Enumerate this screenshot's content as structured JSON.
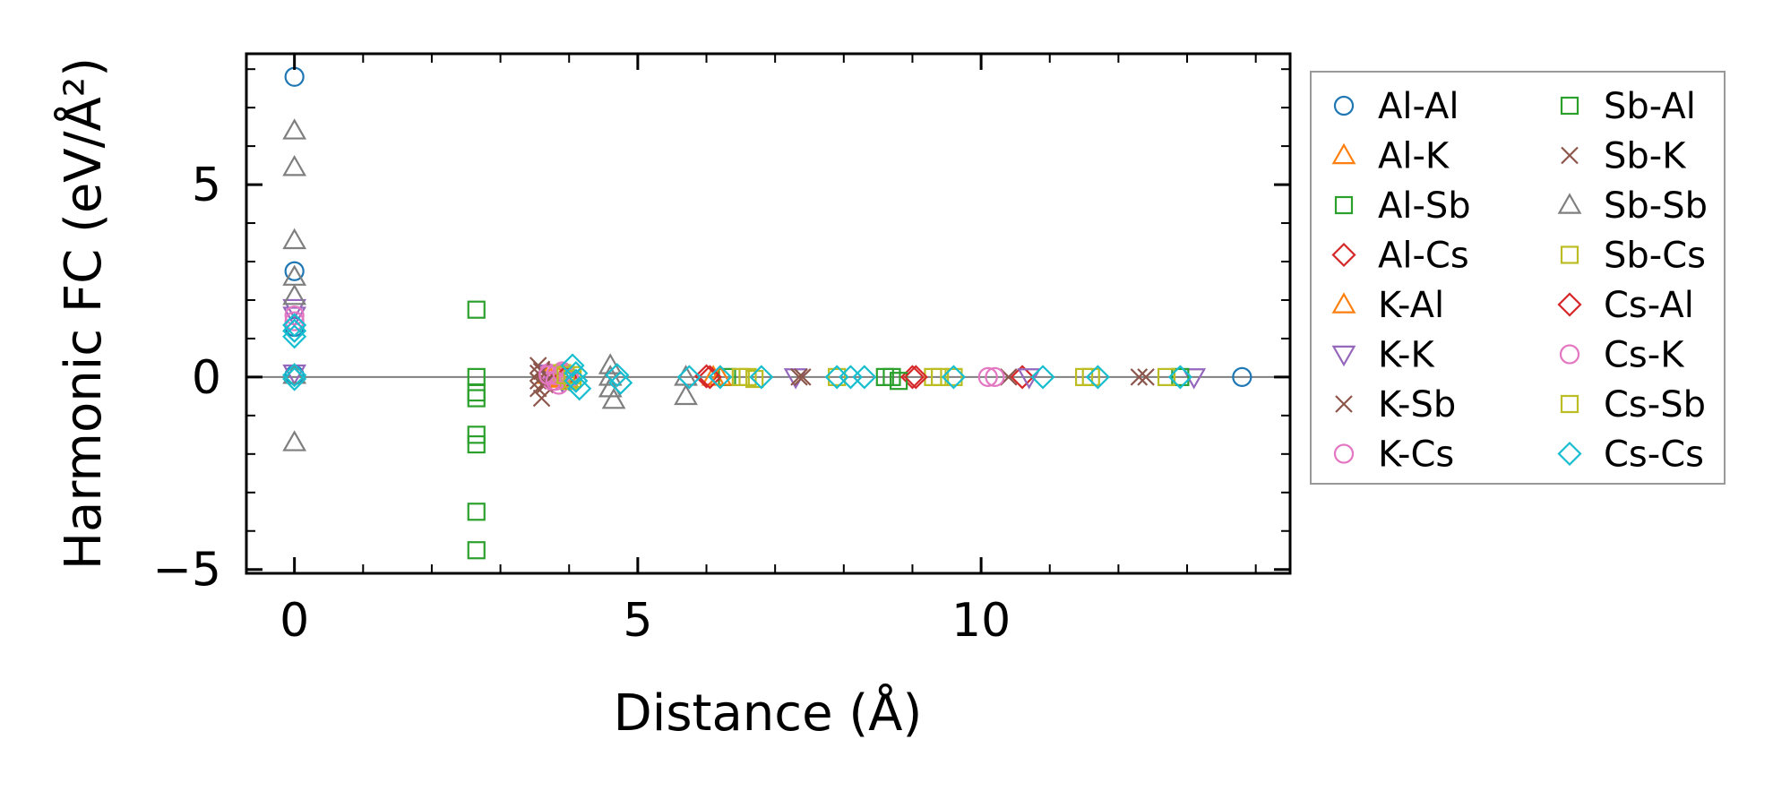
{
  "chart_data": {
    "type": "scatter",
    "xlabel": "Distance (Å)",
    "ylabel": "Harmonic FC (eV/Å²)",
    "xlim": [
      -0.7,
      14.5
    ],
    "ylim": [
      -5.1,
      8.4
    ],
    "xticks": [
      0,
      5,
      10
    ],
    "yticks": [
      -5,
      0,
      5
    ],
    "x_tick_labels": [
      "0",
      "5",
      "10"
    ],
    "y_tick_labels": [
      "−5",
      "0",
      "5"
    ],
    "grid": false,
    "zero_line": true,
    "legend": {
      "placement": "outside-right",
      "columns": 2
    },
    "series": [
      {
        "name": "Al-Al",
        "marker": "circle",
        "color": "#1f77b4",
        "x": [
          0,
          0,
          0,
          0,
          13.8
        ],
        "y": [
          7.8,
          2.75,
          1.3,
          0.05,
          0.0
        ]
      },
      {
        "name": "Al-K",
        "marker": "triangle-up",
        "color": "#ff7f0e",
        "x": [
          3.7,
          3.8,
          6.1
        ],
        "y": [
          0.05,
          -0.05,
          0.0
        ]
      },
      {
        "name": "Al-Sb",
        "marker": "square",
        "color": "#2ca02c",
        "x": [
          2.65,
          2.65,
          2.65,
          2.65,
          2.65,
          2.65,
          2.65,
          2.65,
          6.3,
          8.7
        ],
        "y": [
          1.75,
          -0.4,
          -0.55,
          -1.5,
          -1.75,
          -3.5,
          -4.5,
          0.0,
          0.0,
          0.0
        ]
      },
      {
        "name": "Al-Cs",
        "marker": "diamond",
        "color": "#d62728",
        "x": [
          3.9,
          4.0,
          6.0,
          9.0,
          10.6
        ],
        "y": [
          0.05,
          -0.05,
          0.02,
          0.0,
          0.0
        ]
      },
      {
        "name": "K-Al",
        "marker": "triangle-up",
        "color": "#ff7f0e",
        "x": [
          3.75,
          3.85,
          6.2
        ],
        "y": [
          0.02,
          -0.02,
          0.0
        ]
      },
      {
        "name": "K-K",
        "marker": "triangle-down",
        "color": "#9467bd",
        "x": [
          0,
          0,
          0,
          3.7,
          3.9,
          7.3,
          10.7,
          13.1
        ],
        "y": [
          1.8,
          1.6,
          0.1,
          0.1,
          -0.1,
          0.0,
          0.0,
          0.0
        ]
      },
      {
        "name": "K-Sb",
        "marker": "x",
        "color": "#8c564b",
        "x": [
          3.55,
          3.55,
          3.55,
          3.55,
          3.6,
          3.6,
          3.65,
          7.4,
          10.4,
          12.3
        ],
        "y": [
          0.3,
          0.1,
          -0.1,
          -0.3,
          -0.55,
          0.2,
          -0.2,
          0.0,
          0.0,
          0.0
        ]
      },
      {
        "name": "K-Cs",
        "marker": "circle",
        "color": "#e377c2",
        "x": [
          0,
          0,
          3.7,
          3.75,
          3.8,
          3.85,
          3.9,
          3.95,
          4.0,
          10.1
        ],
        "y": [
          1.6,
          1.45,
          0.1,
          -0.1,
          0.05,
          -0.2,
          0.15,
          -0.05,
          0.0,
          0.0
        ]
      },
      {
        "name": "Sb-Al",
        "marker": "square",
        "color": "#2ca02c",
        "x": [
          8.6,
          8.8,
          12.9
        ],
        "y": [
          0.0,
          -0.1,
          0.0
        ]
      },
      {
        "name": "Sb-K",
        "marker": "x",
        "color": "#8c564b",
        "x": [
          3.6,
          3.65,
          7.35,
          12.4
        ],
        "y": [
          0.15,
          -0.15,
          0.0,
          0.0
        ]
      },
      {
        "name": "Sb-Sb",
        "marker": "triangle-up",
        "color": "#7f7f7f",
        "x": [
          0,
          0,
          0,
          0,
          0,
          0,
          0,
          4.6,
          4.6,
          4.6,
          4.65,
          5.7,
          5.7
        ],
        "y": [
          6.4,
          5.45,
          3.55,
          2.6,
          2.1,
          0.05,
          -1.7,
          0.3,
          0.0,
          -0.3,
          -0.6,
          0.0,
          -0.5
        ]
      },
      {
        "name": "Sb-Cs",
        "marker": "square",
        "color": "#bcbd22",
        "x": [
          3.9,
          4.0,
          4.05,
          6.5,
          6.7,
          7.9,
          9.3,
          9.6,
          11.6,
          12.7
        ],
        "y": [
          0.1,
          -0.1,
          0.05,
          0.0,
          -0.05,
          0.0,
          0.0,
          0.0,
          0.0,
          0.0
        ]
      },
      {
        "name": "Cs-Al",
        "marker": "diamond",
        "color": "#d62728",
        "x": [
          3.95,
          6.05,
          9.05
        ],
        "y": [
          0.0,
          0.0,
          0.0
        ]
      },
      {
        "name": "Cs-K",
        "marker": "circle",
        "color": "#e377c2",
        "x": [
          3.7,
          3.8,
          3.9,
          4.0,
          10.2
        ],
        "y": [
          0.05,
          -0.1,
          0.1,
          -0.05,
          0.0
        ]
      },
      {
        "name": "Cs-Sb",
        "marker": "square",
        "color": "#bcbd22",
        "x": [
          3.95,
          4.05,
          6.6,
          9.4,
          11.5
        ],
        "y": [
          0.05,
          -0.05,
          0.0,
          0.0,
          0.0
        ]
      },
      {
        "name": "Cs-Cs",
        "marker": "diamond",
        "color": "#17becf",
        "x": [
          0,
          0,
          0,
          0,
          0,
          4.05,
          4.1,
          4.1,
          4.15,
          4.7,
          4.75,
          5.75,
          6.2,
          6.8,
          7.9,
          8.1,
          8.3,
          9.6,
          10.9,
          11.7,
          12.9
        ],
        "y": [
          1.35,
          1.2,
          1.05,
          0.05,
          -0.05,
          0.3,
          0.1,
          -0.1,
          -0.3,
          0.05,
          -0.15,
          0.0,
          0.0,
          0.0,
          0.0,
          0.0,
          0.0,
          0.0,
          0.0,
          0.0,
          0.0
        ]
      }
    ]
  }
}
